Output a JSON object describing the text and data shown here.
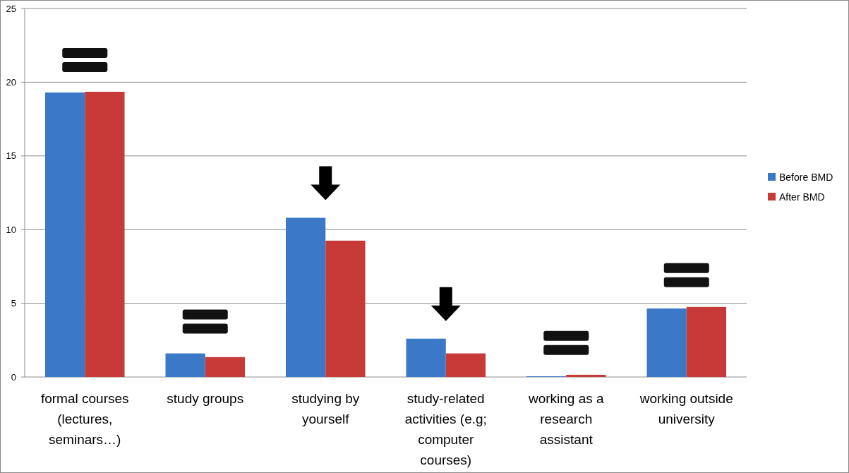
{
  "chart_data": {
    "type": "bar",
    "categories": [
      "formal courses (lectures, seminars…)",
      "study groups",
      "studying by yourself",
      "study-related activities (e.g; computer courses)",
      "working as a research assistant",
      "working outside university"
    ],
    "series": [
      {
        "name": "Before BMD",
        "color": "#3b78c8",
        "values": [
          19.3,
          1.6,
          10.8,
          2.6,
          0.05,
          4.65
        ]
      },
      {
        "name": "After BMD",
        "color": "#c83a37",
        "values": [
          19.35,
          1.35,
          9.25,
          1.6,
          0.15,
          4.75
        ]
      }
    ],
    "ylim": [
      0,
      25
    ],
    "yticks": [
      0,
      5,
      10,
      15,
      20,
      25
    ],
    "grid": "y",
    "legend": "right"
  }
}
